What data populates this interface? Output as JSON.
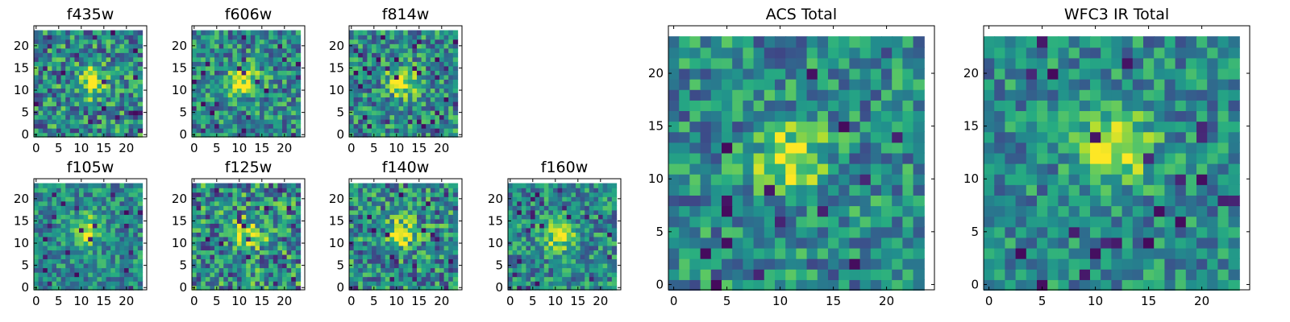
{
  "chart_data": [
    {
      "type": "heatmap",
      "title": "f435w",
      "xlim": [
        0,
        24
      ],
      "ylim": [
        0,
        24
      ],
      "xticks": [
        "0",
        "5",
        "10",
        "15",
        "20"
      ],
      "yticks": [
        "0",
        "5",
        "10",
        "15",
        "20"
      ],
      "grid_size": 24,
      "peak": [
        12,
        12
      ],
      "noise_level": 0.55,
      "colormap": "viridis",
      "grid": false
    },
    {
      "type": "heatmap",
      "title": "f606w",
      "xlim": [
        0,
        24
      ],
      "ylim": [
        0,
        24
      ],
      "xticks": [
        "0",
        "5",
        "10",
        "15",
        "20"
      ],
      "yticks": [
        "0",
        "5",
        "10",
        "15",
        "20"
      ],
      "grid_size": 24,
      "peak": [
        11,
        12
      ],
      "noise_level": 0.5,
      "colormap": "viridis",
      "grid": false
    },
    {
      "type": "heatmap",
      "title": "f814w",
      "xlim": [
        0,
        24
      ],
      "ylim": [
        0,
        24
      ],
      "xticks": [
        "0",
        "5",
        "10",
        "15",
        "20"
      ],
      "yticks": [
        "0",
        "5",
        "10",
        "15",
        "20"
      ],
      "grid_size": 24,
      "peak": [
        11,
        12
      ],
      "noise_level": 0.5,
      "colormap": "viridis",
      "grid": false
    },
    {
      "type": "heatmap",
      "title": "f105w",
      "xlim": [
        0,
        24
      ],
      "ylim": [
        0,
        24
      ],
      "xticks": [
        "0",
        "5",
        "10",
        "15",
        "20"
      ],
      "yticks": [
        "0",
        "5",
        "10",
        "15",
        "20"
      ],
      "grid_size": 24,
      "peak": [
        11,
        13
      ],
      "noise_level": 0.4,
      "colormap": "viridis",
      "grid": false
    },
    {
      "type": "heatmap",
      "title": "f125w",
      "xlim": [
        0,
        24
      ],
      "ylim": [
        0,
        24
      ],
      "xticks": [
        "0",
        "5",
        "10",
        "15",
        "20"
      ],
      "yticks": [
        "0",
        "5",
        "10",
        "15",
        "20"
      ],
      "grid_size": 24,
      "peak": [
        12,
        12
      ],
      "noise_level": 0.6,
      "colormap": "viridis",
      "grid": false
    },
    {
      "type": "heatmap",
      "title": "f140w",
      "xlim": [
        0,
        24
      ],
      "ylim": [
        0,
        24
      ],
      "xticks": [
        "0",
        "5",
        "10",
        "15",
        "20"
      ],
      "yticks": [
        "0",
        "5",
        "10",
        "15",
        "20"
      ],
      "grid_size": 24,
      "peak": [
        11,
        12
      ],
      "noise_level": 0.55,
      "colormap": "viridis",
      "grid": false
    },
    {
      "type": "heatmap",
      "title": "f160w",
      "xlim": [
        0,
        24
      ],
      "ylim": [
        0,
        24
      ],
      "xticks": [
        "0",
        "5",
        "10",
        "15",
        "20"
      ],
      "yticks": [
        "0",
        "5",
        "10",
        "15",
        "20"
      ],
      "grid_size": 24,
      "peak": [
        11,
        12
      ],
      "noise_level": 0.45,
      "colormap": "viridis",
      "grid": false
    },
    {
      "type": "heatmap",
      "title": "ACS Total",
      "xlim": [
        0,
        24
      ],
      "ylim": [
        0,
        24
      ],
      "xticks": [
        "0",
        "5",
        "10",
        "15",
        "20"
      ],
      "yticks": [
        "0",
        "5",
        "10",
        "15",
        "20"
      ],
      "grid_size": 24,
      "peak": [
        11,
        12
      ],
      "noise_level": 0.45,
      "colormap": "viridis",
      "grid": false
    },
    {
      "type": "heatmap",
      "title": "WFC3 IR Total",
      "xlim": [
        0,
        24
      ],
      "ylim": [
        0,
        24
      ],
      "xticks": [
        "0",
        "5",
        "10",
        "15",
        "20"
      ],
      "yticks": [
        "0",
        "5",
        "10",
        "15",
        "20"
      ],
      "grid_size": 24,
      "peak": [
        12,
        13
      ],
      "noise_level": 0.4,
      "colormap": "viridis",
      "grid": false
    }
  ]
}
